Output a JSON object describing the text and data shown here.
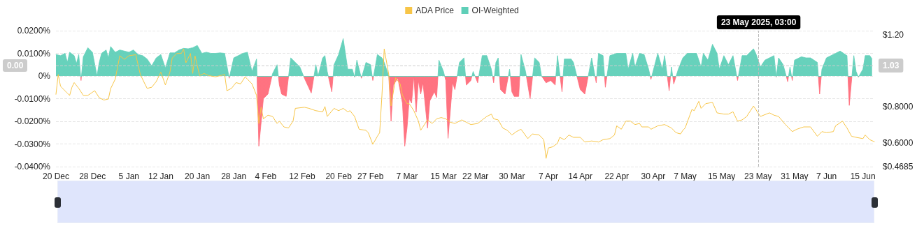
{
  "chart_data": {
    "type": "line",
    "legend": "top",
    "grid": "y",
    "marker": "none",
    "xlim": [
      "2024-12-20",
      "2025-06-17T12:00"
    ],
    "xticks": [
      {
        "value": "2024-12-20",
        "label": "20 Dec"
      },
      {
        "value": "2024-12-28",
        "label": "28 Dec"
      },
      {
        "value": "2025-01-05",
        "label": "5 Jan"
      },
      {
        "value": "2025-01-12",
        "label": "12 Jan"
      },
      {
        "value": "2025-01-20",
        "label": "20 Jan"
      },
      {
        "value": "2025-01-28",
        "label": "28 Jan"
      },
      {
        "value": "2025-02-04",
        "label": "4 Feb"
      },
      {
        "value": "2025-02-12",
        "label": "12 Feb"
      },
      {
        "value": "2025-02-20",
        "label": "20 Feb"
      },
      {
        "value": "2025-02-27",
        "label": "27 Feb"
      },
      {
        "value": "2025-03-07",
        "label": "7 Mar"
      },
      {
        "value": "2025-03-15",
        "label": "15 Mar"
      },
      {
        "value": "2025-03-22",
        "label": "22 Mar"
      },
      {
        "value": "2025-03-30",
        "label": "30 Mar"
      },
      {
        "value": "2025-04-07",
        "label": "7 Apr"
      },
      {
        "value": "2025-04-14",
        "label": "14 Apr"
      },
      {
        "value": "2025-04-22",
        "label": "22 Apr"
      },
      {
        "value": "2025-04-30",
        "label": "30 Apr"
      },
      {
        "value": "2025-05-07",
        "label": "7 May"
      },
      {
        "value": "2025-05-15",
        "label": "15 May"
      },
      {
        "value": "2025-05-23",
        "label": "23 May"
      },
      {
        "value": "2025-05-31",
        "label": "31 May"
      },
      {
        "value": "2025-06-07",
        "label": "7 Jun"
      },
      {
        "value": "2025-06-15",
        "label": "15 Jun"
      }
    ],
    "ylim": [
      -0.04,
      0.02
    ],
    "yticks": [
      {
        "value": -0.04,
        "label": "-0.0400%"
      },
      {
        "value": -0.03,
        "label": "-0.0300%"
      },
      {
        "value": -0.02,
        "label": "-0.0200%"
      },
      {
        "value": -0.01,
        "label": "-0.0100%"
      },
      {
        "value": 0,
        "label": "0%"
      },
      {
        "value": 0.01,
        "label": "0.0100%"
      },
      {
        "value": 0.02,
        "label": "0.0200%"
      }
    ],
    "y2lim": [
      0.4685,
      1.2233
    ],
    "y2ticks": [
      {
        "value": 0.4685,
        "label": "$0.4685"
      },
      {
        "value": 0.6,
        "label": "$0.6000"
      },
      {
        "value": 0.8,
        "label": "$0.8000"
      },
      {
        "value": 1.2,
        "label": "$1.20"
      }
    ],
    "ref_lines": [
      {
        "axis": "x",
        "value": "2025-05-23T03:00",
        "label": "23 May 2025, 03:00",
        "color": "#bbbbbb",
        "line_style": "dashed"
      },
      {
        "axis": "y2",
        "value": 1.03,
        "label": "1.03",
        "color": "#cccccc",
        "line_style": "dashed"
      }
    ],
    "annotations": [
      "0.00"
    ],
    "series": [
      {
        "name": "ADA Price",
        "axis": "y2",
        "color": "#f7c548",
        "x": [
          "2024-12-20",
          "2024-12-20T12:00",
          "2024-12-21",
          "2024-12-22T12:00",
          "2024-12-23",
          "2024-12-23T12:00",
          "2024-12-24",
          "2024-12-25",
          "2024-12-26",
          "2024-12-27",
          "2024-12-28T12:00",
          "2024-12-29T12:00",
          "2024-12-30T12:00",
          "2024-12-31T12:00",
          "2025-01-01",
          "2025-01-02",
          "2025-01-03",
          "2025-01-04",
          "2025-01-05",
          "2025-01-06T12:00",
          "2025-01-07T12:00",
          "2025-01-08T12:00",
          "2025-01-09",
          "2025-01-10",
          "2025-01-11",
          "2025-01-12",
          "2025-01-13",
          "2025-01-14",
          "2025-01-14T12:00",
          "2025-01-15T12:00",
          "2025-01-16T12:00",
          "2025-01-17",
          "2025-01-17T12:00",
          "2025-01-18T12:00",
          "2025-01-19",
          "2025-01-19T12:00",
          "2025-01-20T12:00",
          "2025-01-21T12:00",
          "2025-01-22T12:00",
          "2025-01-24",
          "2025-01-26",
          "2025-01-26T12:00",
          "2025-01-27T12:00",
          "2025-01-28T12:00",
          "2025-01-29T12:00",
          "2025-01-30T12:00",
          "2025-01-31",
          "2025-02-01",
          "2025-02-02",
          "2025-02-02T12:00",
          "2025-02-03",
          "2025-02-03T12:00",
          "2025-02-04T12:00",
          "2025-02-05T12:00",
          "2025-02-06T12:00",
          "2025-02-07",
          "2025-02-08",
          "2025-02-09",
          "2025-02-10",
          "2025-02-10T12:00",
          "2025-02-12T12:00",
          "2025-02-13T12:00",
          "2025-02-15",
          "2025-02-16T12:00",
          "2025-02-17",
          "2025-02-17T12:00",
          "2025-02-19",
          "2025-02-20",
          "2025-02-21",
          "2025-02-22",
          "2025-02-22T12:00",
          "2025-02-23T12:00",
          "2025-02-24T12:00",
          "2025-02-26",
          "2025-02-26T12:00",
          "2025-02-27T12:00",
          "2025-02-28T12:00",
          "2025-03-01",
          "2025-03-01T12:00",
          "2025-03-02",
          "2025-03-03",
          "2025-03-03T12:00",
          "2025-03-04T12:00",
          "2025-03-05T12:00",
          "2025-03-06",
          "2025-03-07",
          "2025-03-07T12:00",
          "2025-03-08T12:00",
          "2025-03-09T12:00",
          "2025-03-10",
          "2025-03-11T12:00",
          "2025-03-12T12:00",
          "2025-03-13T12:00",
          "2025-03-14T12:00",
          "2025-03-15T12:00",
          "2025-03-16T12:00",
          "2025-03-17T12:00",
          "2025-03-19",
          "2025-03-20",
          "2025-03-21",
          "2025-03-22T12:00",
          "2025-03-23T12:00",
          "2025-03-24T12:00",
          "2025-03-25T12:00",
          "2025-03-26",
          "2025-03-27",
          "2025-03-28",
          "2025-03-29",
          "2025-03-30",
          "2025-03-31",
          "2025-04-01",
          "2025-04-02T12:00",
          "2025-04-03T12:00",
          "2025-04-05",
          "2025-04-06",
          "2025-04-06T12:00",
          "2025-04-07",
          "2025-04-08",
          "2025-04-09",
          "2025-04-09T12:00",
          "2025-04-10T12:00",
          "2025-04-11T12:00",
          "2025-04-12T12:00",
          "2025-04-14",
          "2025-04-15",
          "2025-04-16T12:00",
          "2025-04-18",
          "2025-04-19",
          "2025-04-20T12:00",
          "2025-04-21T12:00",
          "2025-04-22",
          "2025-04-23",
          "2025-04-24",
          "2025-04-25",
          "2025-04-26",
          "2025-04-27",
          "2025-04-27T12:00",
          "2025-04-29",
          "2025-04-29T12:00",
          "2025-05-01",
          "2025-05-02T12:00",
          "2025-05-04",
          "2025-05-05",
          "2025-05-06",
          "2025-05-06T12:00",
          "2025-05-07",
          "2025-05-08T12:00",
          "2025-05-09",
          "2025-05-10",
          "2025-05-10T12:00",
          "2025-05-11T12:00",
          "2025-05-13",
          "2025-05-14",
          "2025-05-15T12:00",
          "2025-05-16T12:00",
          "2025-05-17T12:00",
          "2025-05-18T12:00",
          "2025-05-19T12:00",
          "2025-05-20T12:00",
          "2025-05-22",
          "2025-05-22T12:00",
          "2025-05-23T12:00",
          "2025-05-25T12:00",
          "2025-05-26T12:00",
          "2025-05-27T12:00",
          "2025-05-29",
          "2025-05-30T12:00",
          "2025-05-31T12:00",
          "2025-06-02",
          "2025-06-03T12:00",
          "2025-06-05",
          "2025-06-06",
          "2025-06-07",
          "2025-06-08T12:00",
          "2025-06-09",
          "2025-06-10T12:00",
          "2025-06-11T12:00",
          "2025-06-12T12:00",
          "2025-06-13T12:00",
          "2025-06-15",
          "2025-06-15T12:00",
          "2025-06-16T12:00",
          "2025-06-17T12:00"
        ],
        "values": [
          0.87,
          0.98,
          0.915,
          0.876,
          0.864,
          0.909,
          0.935,
          0.903,
          0.864,
          0.864,
          0.89,
          0.851,
          0.838,
          0.844,
          0.902,
          0.954,
          1.084,
          1.064,
          1.084,
          1.09,
          0.98,
          0.928,
          0.903,
          0.909,
          0.941,
          0.993,
          0.922,
          0.993,
          1.071,
          1.097,
          1.097,
          1.122,
          1.045,
          1.097,
          0.986,
          1.084,
          0.974,
          0.986,
          0.974,
          0.967,
          0.98,
          0.89,
          0.903,
          0.935,
          0.928,
          0.967,
          0.954,
          0.928,
          0.864,
          0.708,
          0.799,
          0.734,
          0.754,
          0.747,
          0.708,
          0.721,
          0.689,
          0.683,
          0.721,
          0.792,
          0.798,
          0.792,
          0.779,
          0.773,
          0.802,
          0.747,
          0.792,
          0.779,
          0.792,
          0.773,
          0.779,
          0.747,
          0.676,
          0.67,
          0.657,
          0.592,
          0.637,
          0.657,
          0.864,
          1.122,
          0.98,
          0.805,
          0.961,
          0.928,
          0.864,
          0.818,
          0.818,
          0.779,
          0.721,
          0.67,
          0.728,
          0.708,
          0.734,
          0.741,
          0.734,
          0.715,
          0.708,
          0.728,
          0.715,
          0.702,
          0.708,
          0.728,
          0.747,
          0.76,
          0.734,
          0.728,
          0.683,
          0.67,
          0.644,
          0.663,
          0.676,
          0.624,
          0.65,
          0.644,
          0.618,
          0.514,
          0.572,
          0.579,
          0.598,
          0.631,
          0.618,
          0.644,
          0.631,
          0.631,
          0.605,
          0.611,
          0.605,
          0.618,
          0.624,
          0.644,
          0.695,
          0.676,
          0.721,
          0.721,
          0.702,
          0.708,
          0.689,
          0.689,
          0.676,
          0.695,
          0.702,
          0.683,
          0.657,
          0.65,
          0.67,
          0.683,
          0.786,
          0.779,
          0.831,
          0.792,
          0.818,
          0.825,
          0.767,
          0.76,
          0.76,
          0.773,
          0.721,
          0.728,
          0.747,
          0.805,
          0.786,
          0.747,
          0.767,
          0.754,
          0.747,
          0.702,
          0.663,
          0.676,
          0.689,
          0.689,
          0.637,
          0.663,
          0.657,
          0.663,
          0.695,
          0.721,
          0.683,
          0.637,
          0.631,
          0.624,
          0.644,
          0.618,
          0.607
        ]
      },
      {
        "name": "OI-Weighted",
        "type": "area",
        "color": "#5fcfb8",
        "x": [
          "2024-12-20",
          "2024-12-21",
          "2024-12-22",
          "2024-12-22T12:00",
          "2024-12-23",
          "2024-12-24",
          "2024-12-24T12:00",
          "2024-12-25",
          "2024-12-25T12:00",
          "2024-12-26",
          "2024-12-27",
          "2024-12-28",
          "2024-12-29",
          "2024-12-29T12:00",
          "2024-12-30",
          "2024-12-31",
          "2024-12-31T12:00",
          "2025-01-01",
          "2025-01-02",
          "2025-01-03",
          "2025-01-04",
          "2025-01-05",
          "2025-01-06",
          "2025-01-07",
          "2025-01-08",
          "2025-01-09",
          "2025-01-10",
          "2025-01-11",
          "2025-01-12",
          "2025-01-13",
          "2025-01-14",
          "2025-01-15",
          "2025-01-16",
          "2025-01-17",
          "2025-01-18",
          "2025-01-19",
          "2025-01-20",
          "2025-01-21",
          "2025-01-22",
          "2025-01-23",
          "2025-01-24",
          "2025-01-25",
          "2025-01-26",
          "2025-01-27",
          "2025-01-28",
          "2025-01-29",
          "2025-01-30",
          "2025-01-31",
          "2025-02-01",
          "2025-02-02",
          "2025-02-02T12:00",
          "2025-02-03T12:00",
          "2025-02-04T12:00",
          "2025-02-05T12:00",
          "2025-02-06T12:00",
          "2025-02-07",
          "2025-02-07T12:00",
          "2025-02-08T12:00",
          "2025-02-09T12:00",
          "2025-02-10T12:00",
          "2025-02-11T12:00",
          "2025-02-12T12:00",
          "2025-02-14",
          "2025-02-15",
          "2025-02-15T12:00",
          "2025-02-16T12:00",
          "2025-02-17",
          "2025-02-17T12:00",
          "2025-02-18T12:00",
          "2025-02-19",
          "2025-02-20",
          "2025-02-21",
          "2025-02-22",
          "2025-02-23",
          "2025-02-23T12:00",
          "2025-02-24",
          "2025-02-25",
          "2025-02-26",
          "2025-02-27",
          "2025-02-27T12:00",
          "2025-02-28T12:00",
          "2025-03-01T12:00",
          "2025-03-02",
          "2025-03-03",
          "2025-03-03T12:00",
          "2025-03-04",
          "2025-03-05",
          "2025-03-06",
          "2025-03-06T12:00",
          "2025-03-07",
          "2025-03-07T12:00",
          "2025-03-08",
          "2025-03-08T12:00",
          "2025-03-09",
          "2025-03-09T12:00",
          "2025-03-10",
          "2025-03-10T12:00",
          "2025-03-11T12:00",
          "2025-03-12",
          "2025-03-13",
          "2025-03-13T12:00",
          "2025-03-14",
          "2025-03-15",
          "2025-03-15T12:00",
          "2025-03-16",
          "2025-03-17",
          "2025-03-17T12:00",
          "2025-03-18T12:00",
          "2025-03-19T12:00",
          "2025-03-20",
          "2025-03-21",
          "2025-03-21T12:00",
          "2025-03-22T12:00",
          "2025-03-23T12:00",
          "2025-03-24T12:00",
          "2025-03-25T12:00",
          "2025-03-26",
          "2025-03-26T12:00",
          "2025-03-27",
          "2025-03-27T12:00",
          "2025-03-28T12:00",
          "2025-03-29T12:00",
          "2025-03-30",
          "2025-03-30T12:00",
          "2025-03-31T12:00",
          "2025-04-01",
          "2025-04-02",
          "2025-04-03",
          "2025-04-04",
          "2025-04-05",
          "2025-04-05T12:00",
          "2025-04-06T12:00",
          "2025-04-07T12:00",
          "2025-04-08T12:00",
          "2025-04-09",
          "2025-04-10",
          "2025-04-10T12:00",
          "2025-04-12",
          "2025-04-12T12:00",
          "2025-04-14",
          "2025-04-15",
          "2025-04-16T12:00",
          "2025-04-17T12:00",
          "2025-04-18",
          "2025-04-19",
          "2025-04-19T12:00",
          "2025-04-20T12:00",
          "2025-04-22",
          "2025-04-24",
          "2025-04-24T12:00",
          "2025-04-25T12:00",
          "2025-04-26",
          "2025-04-27",
          "2025-04-28",
          "2025-04-29",
          "2025-04-29T12:00",
          "2025-05-01",
          "2025-05-02",
          "2025-05-02T12:00",
          "2025-05-03T12:00",
          "2025-05-04",
          "2025-05-04T12:00",
          "2025-05-05T12:00",
          "2025-05-06T12:00",
          "2025-05-07T12:00",
          "2025-05-09T12:00",
          "2025-05-10T12:00",
          "2025-05-11",
          "2025-05-12",
          "2025-05-13",
          "2025-05-14",
          "2025-05-14T12:00",
          "2025-05-15T12:00",
          "2025-05-16T12:00",
          "2025-05-17T12:00",
          "2025-05-18T12:00",
          "2025-05-19T12:00",
          "2025-05-20T12:00",
          "2025-05-22",
          "2025-05-22T12:00",
          "2025-05-23T12:00",
          "2025-05-24T12:00",
          "2025-05-25T12:00",
          "2025-05-26T12:00",
          "2025-05-27",
          "2025-05-27T12:00",
          "2025-05-28T12:00",
          "2025-05-29T12:00",
          "2025-05-30",
          "2025-05-30T12:00",
          "2025-05-31",
          "2025-06-01",
          "2025-06-01T12:00",
          "2025-06-02T12:00",
          "2025-06-03T12:00",
          "2025-06-05",
          "2025-06-05T12:00",
          "2025-06-06",
          "2025-06-07",
          "2025-06-08",
          "2025-06-09",
          "2025-06-10",
          "2025-06-11T12:00",
          "2025-06-12",
          "2025-06-13",
          "2025-06-13T12:00",
          "2025-06-14",
          "2025-06-15",
          "2025-06-15T12:00",
          "2025-06-16T12:00",
          "2025-06-17"
        ],
        "values": [
          0.0095,
          0.009,
          0.01,
          0.006,
          0.0105,
          0.009,
          0.0055,
          0.0095,
          -0.002,
          0.0085,
          0.0125,
          0.0105,
          0,
          0.006,
          0.01,
          0.0115,
          0.008,
          0.013,
          0.0105,
          0.0115,
          0.011,
          0.0105,
          0.0115,
          0.0095,
          0.009,
          0.0075,
          0.0045,
          0.008,
          0.0095,
          0.0035,
          0.0102,
          0.0102,
          0.0115,
          0.0122,
          0.012,
          0.0125,
          0.0135,
          0.01,
          0.0105,
          0.01,
          0.01,
          0.0102,
          0.01,
          -0.001,
          0.008,
          0.009,
          0.01,
          0.0105,
          0.002,
          0.0075,
          -0.031,
          -0.01,
          -0.008,
          0.001,
          0.005,
          -0.004,
          -0.008,
          -0.009,
          0.008,
          0.006,
          0.004,
          -0.001,
          -0.0075,
          0.005,
          0,
          0.008,
          0.009,
          0.002,
          -0.007,
          0.005,
          0.0095,
          0.0165,
          0.003,
          0.003,
          -0.0005,
          0.007,
          -0.001,
          0.006,
          0.005,
          -0.002,
          0.0095,
          0.008,
          0.006,
          0,
          -0.02,
          -0.004,
          -0.001,
          -0.012,
          -0.031,
          -0.023,
          -0.01,
          -0.012,
          0,
          -0.016,
          -0.002,
          -0.008,
          -0.003,
          -0.023,
          -0.011,
          -0.007,
          -0.0095,
          0.007,
          0.002,
          -0.002,
          -0.0275,
          -0.003,
          -0.006,
          0.006,
          0.008,
          -0.004,
          -0.002,
          0.002,
          -0.003,
          0.009,
          0.009,
          0.003,
          -0.003,
          0.006,
          0.008,
          -0.006,
          -0.008,
          0.003,
          -0.007,
          -0.009,
          -0.009,
          0.0095,
          0.002,
          -0.01,
          0.008,
          0.006,
          0,
          -0.003,
          -0.002,
          -0.004,
          0.009,
          -0.007,
          0.0075,
          0.0075,
          0.006,
          -0.006,
          -0.008,
          0.008,
          -0.003,
          0.01,
          0.009,
          -0.005,
          0.009,
          0.01,
          0.01,
          0.003,
          0.01,
          0.004,
          0.01,
          0.0095,
          0.003,
          -0.0015,
          0.01,
          0.003,
          0.009,
          -0.0065,
          0.004,
          -0.0035,
          0.003,
          0.008,
          0.01,
          0.01,
          0.004,
          0.01,
          0.007,
          0.014,
          0.01,
          0.003,
          0.009,
          0.005,
          0.009,
          -0.002,
          0.009,
          0.009,
          0.012,
          0.01,
          0.004,
          0.007,
          0.008,
          0.009,
          -0.0005,
          0.008,
          0.005,
          -0.0025,
          0.004,
          -0.002,
          0.007,
          0.008,
          0.0085,
          0.008,
          0.008,
          0.006,
          -0.008,
          0.003,
          0.008,
          0.009,
          0.01,
          0.011,
          0.009,
          -0.013,
          0.009,
          0.002,
          -0.0005,
          0.003,
          0.009,
          0.009,
          0.0075
        ],
        "colors": [
          "#5fcfb8",
          "#5fcfb8",
          "#5fcfb8",
          "#5fcfb8",
          "#5fcfb8",
          "#5fcfb8",
          "#5fcfb8",
          "#5fcfb8",
          "#ff6b7a",
          "#5fcfb8",
          "#5fcfb8",
          "#5fcfb8",
          "#5fcfb8",
          "#5fcfb8",
          "#5fcfb8",
          "#5fcfb8",
          "#5fcfb8",
          "#5fcfb8",
          "#5fcfb8",
          "#5fcfb8",
          "#5fcfb8",
          "#5fcfb8",
          "#5fcfb8",
          "#5fcfb8",
          "#5fcfb8",
          "#5fcfb8",
          "#5fcfb8",
          "#5fcfb8",
          "#5fcfb8",
          "#5fcfb8",
          "#5fcfb8",
          "#5fcfb8",
          "#5fcfb8",
          "#5fcfb8",
          "#5fcfb8",
          "#5fcfb8",
          "#5fcfb8",
          "#5fcfb8",
          "#5fcfb8",
          "#5fcfb8",
          "#5fcfb8",
          "#5fcfb8",
          "#5fcfb8",
          "#ff6b7a",
          "#5fcfb8",
          "#5fcfb8",
          "#5fcfb8",
          "#5fcfb8",
          "#5fcfb8",
          "#5fcfb8",
          "#ff6b7a",
          "#ff6b7a",
          "#ff6b7a",
          "#5fcfb8",
          "#5fcfb8",
          "#ff6b7a",
          "#ff6b7a",
          "#ff6b7a",
          "#5fcfb8",
          "#5fcfb8",
          "#5fcfb8",
          "#ff6b7a",
          "#ff6b7a",
          "#5fcfb8",
          "#5fcfb8",
          "#5fcfb8",
          "#5fcfb8",
          "#5fcfb8",
          "#ff6b7a",
          "#5fcfb8",
          "#5fcfb8",
          "#5fcfb8",
          "#5fcfb8",
          "#5fcfb8",
          "#ff6b7a",
          "#5fcfb8",
          "#ff6b7a",
          "#5fcfb8",
          "#5fcfb8",
          "#ff6b7a",
          "#5fcfb8",
          "#5fcfb8",
          "#5fcfb8",
          "#5fcfb8",
          "#ff6b7a",
          "#ff6b7a",
          "#ff6b7a",
          "#ff6b7a",
          "#ff6b7a",
          "#ff6b7a",
          "#ff6b7a",
          "#ff6b7a",
          "#5fcfb8",
          "#ff6b7a",
          "#ff6b7a",
          "#ff6b7a",
          "#ff6b7a",
          "#ff6b7a",
          "#ff6b7a",
          "#ff6b7a",
          "#ff6b7a",
          "#5fcfb8",
          "#5fcfb8",
          "#ff6b7a",
          "#ff6b7a",
          "#ff6b7a",
          "#ff6b7a",
          "#5fcfb8",
          "#5fcfb8",
          "#ff6b7a",
          "#ff6b7a",
          "#5fcfb8",
          "#ff6b7a",
          "#5fcfb8",
          "#5fcfb8",
          "#5fcfb8",
          "#ff6b7a",
          "#5fcfb8",
          "#5fcfb8",
          "#ff6b7a",
          "#ff6b7a",
          "#5fcfb8",
          "#ff6b7a",
          "#ff6b7a",
          "#ff6b7a",
          "#5fcfb8",
          "#5fcfb8",
          "#ff6b7a",
          "#5fcfb8",
          "#5fcfb8",
          "#5fcfb8",
          "#ff6b7a",
          "#ff6b7a",
          "#ff6b7a",
          "#5fcfb8",
          "#ff6b7a",
          "#5fcfb8",
          "#5fcfb8",
          "#5fcfb8",
          "#ff6b7a",
          "#ff6b7a",
          "#5fcfb8",
          "#ff6b7a",
          "#5fcfb8",
          "#5fcfb8",
          "#ff6b7a",
          "#5fcfb8",
          "#5fcfb8",
          "#5fcfb8",
          "#5fcfb8",
          "#5fcfb8",
          "#5fcfb8",
          "#5fcfb8",
          "#5fcfb8",
          "#5fcfb8",
          "#ff6b7a",
          "#5fcfb8",
          "#5fcfb8",
          "#5fcfb8",
          "#ff6b7a",
          "#5fcfb8",
          "#ff6b7a",
          "#5fcfb8",
          "#5fcfb8",
          "#5fcfb8",
          "#5fcfb8",
          "#5fcfb8",
          "#5fcfb8",
          "#5fcfb8",
          "#5fcfb8",
          "#5fcfb8",
          "#5fcfb8",
          "#5fcfb8",
          "#5fcfb8",
          "#5fcfb8",
          "#ff6b7a",
          "#5fcfb8",
          "#5fcfb8",
          "#5fcfb8",
          "#5fcfb8",
          "#5fcfb8",
          "#5fcfb8",
          "#5fcfb8",
          "#5fcfb8",
          "#ff6b7a",
          "#5fcfb8",
          "#5fcfb8",
          "#ff6b7a",
          "#5fcfb8",
          "#ff6b7a",
          "#5fcfb8",
          "#5fcfb8",
          "#5fcfb8",
          "#5fcfb8",
          "#5fcfb8",
          "#5fcfb8",
          "#ff6b7a",
          "#5fcfb8",
          "#5fcfb8",
          "#5fcfb8",
          "#5fcfb8",
          "#5fcfb8",
          "#5fcfb8",
          "#ff6b7a",
          "#5fcfb8",
          "#5fcfb8",
          "#ff6b7a",
          "#5fcfb8",
          "#5fcfb8",
          "#5fcfb8",
          "#5fcfb8"
        ]
      }
    ]
  }
}
